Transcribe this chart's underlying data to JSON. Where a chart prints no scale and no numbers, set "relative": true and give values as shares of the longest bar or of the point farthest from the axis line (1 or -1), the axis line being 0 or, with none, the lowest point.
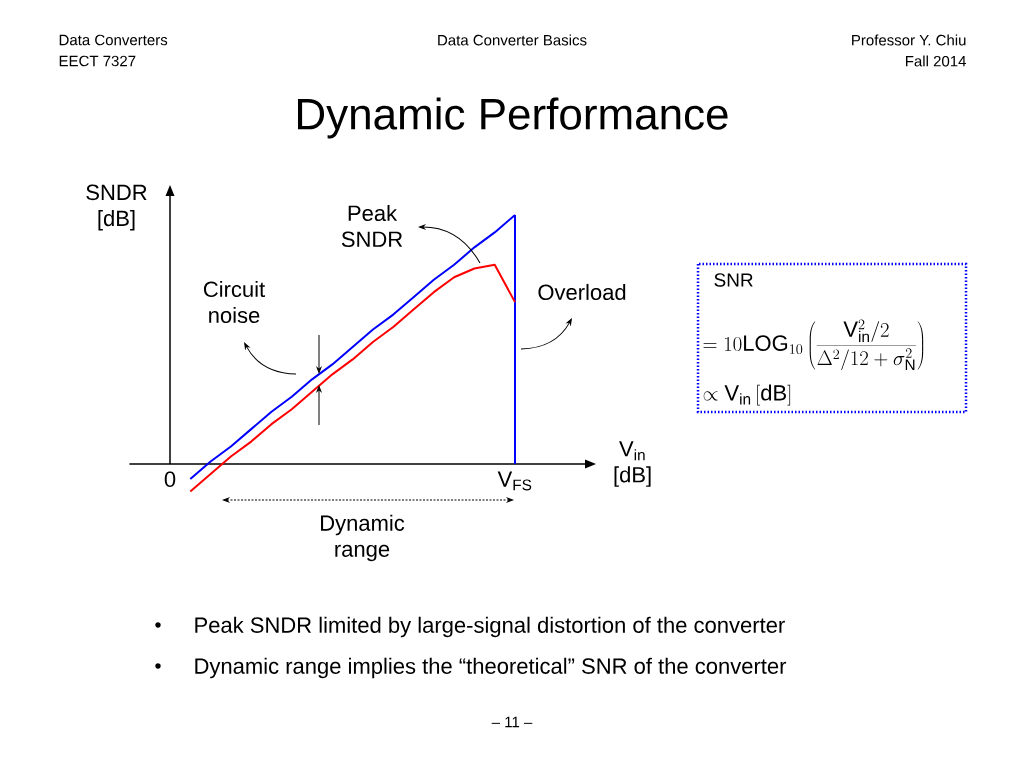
{
  "chart_data": {
    "type": "line",
    "relative": true,
    "title": "Dynamic Performance",
    "ylabel": "SNDR [dB]",
    "xlabel": "V$_{in}$ [dB]",
    "categories": [
      "0",
      null,
      null,
      null,
      null,
      null,
      null,
      null,
      null,
      null,
      null,
      null,
      null,
      null,
      null,
      null,
      null,
      "V$_{FS}$"
    ],
    "series": [
      {
        "color": "#0000ff",
        "values": [
          null,
          -0.06,
          0.01,
          0.07,
          0.14,
          0.21,
          0.27,
          0.34,
          0.4,
          0.47,
          0.54,
          0.6,
          0.67,
          0.74,
          0.8,
          0.87,
          0.93,
          1
        ]
      },
      {
        "color": "#ff0000",
        "values": [
          null,
          -0.11,
          -0.04,
          0.03,
          0.09,
          0.16,
          0.22,
          0.29,
          0.36,
          0.42,
          0.49,
          0.55,
          0.62,
          0.69,
          0.75,
          0.785,
          0.8,
          0.65
        ]
      }
    ],
    "ref_lines": [
      {
        "axis": "x",
        "value": "V$_{FS}$",
        "color": "#0000ff"
      }
    ],
    "annotations": [
      "Data Converters",
      "EECT 7327",
      "Data Converter Basics",
      "Professor Y. Chiu",
      "Fall 2014",
      "Peak SNDR",
      "Circuit noise",
      "Overload",
      "Dynamic range",
      "SNR",
      "=10\\mathrm{LOG}_{10}\\left(\\frac{\\mathrm{V}_{\\mathrm{in}}^{2}/2}{\\Delta^{2}/12+\\sigma_{\\mathrm{N}}^{2}}\\right)",
      "\\propto \\mathrm{V}_{\\mathrm{in}}\\left[\\mathrm{dB}\\right]",
      "Peak SNDR limited by large-signal distortion of the converter",
      "Dynamic range implies the “theoretical” SNR of the converter",
      "– 11 –",
      "•",
      "•"
    ]
  }
}
